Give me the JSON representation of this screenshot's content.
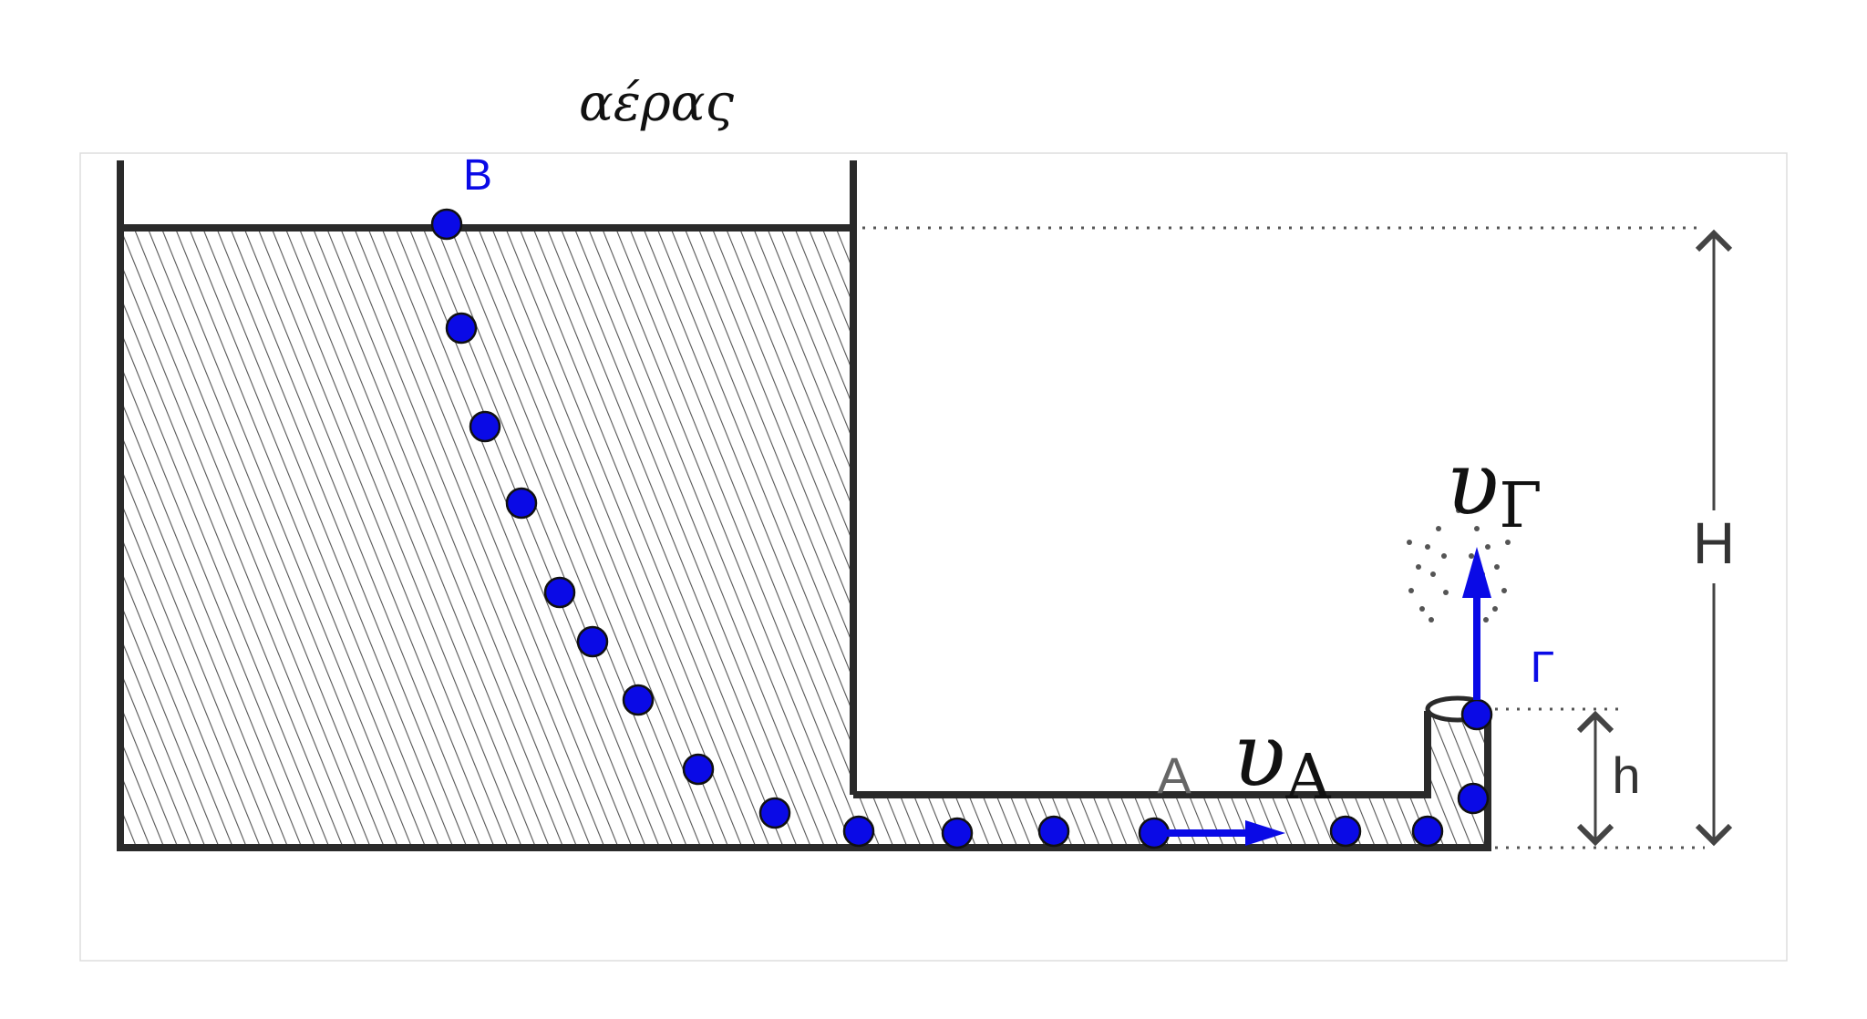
{
  "labels": {
    "air": "αέρας",
    "point_B": "Β",
    "point_A": "A",
    "point_G": "Γ",
    "velocity_A_symbol": "υ",
    "velocity_A_sub": "A",
    "velocity_G_symbol": "υ",
    "velocity_G_sub": "Γ",
    "height_H": "H",
    "height_h": "h"
  },
  "colors": {
    "accent": "#0a0ae6",
    "ink": "#2a2a2a",
    "hatch": "#555555"
  }
}
